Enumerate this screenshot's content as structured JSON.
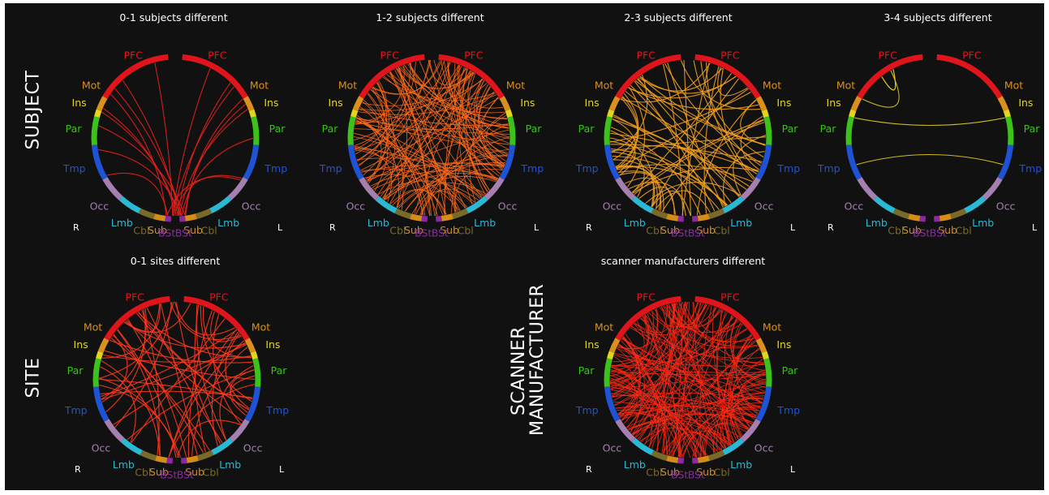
{
  "row_labels": {
    "subject": "SUBJECT",
    "site": "SITE",
    "scanner_line1": "SCANNER",
    "scanner_line2": "MANUFACTURER"
  },
  "regions": [
    {
      "name": "PFC",
      "color": "#e0151b"
    },
    {
      "name": "Mot",
      "color": "#d9901c"
    },
    {
      "name": "Ins",
      "color": "#e2d51e"
    },
    {
      "name": "Par",
      "color": "#3cc21a"
    },
    {
      "name": "Tmp",
      "color": "#1f53d6"
    },
    {
      "name": "Occ",
      "color": "#a57fb0"
    },
    {
      "name": "Lmb",
      "color": "#29b9d4"
    },
    {
      "name": "Cbl",
      "color": "#7a6a2a"
    },
    {
      "name": "Sub",
      "color": "#d58d15"
    },
    {
      "name": "BSt",
      "color": "#8a2aa0"
    }
  ],
  "hemisphere_labels": {
    "right": "R",
    "left": "L"
  },
  "panels": [
    {
      "id": "p1",
      "title": "0-1 subjects different",
      "edge_color": "#e8201c",
      "edge_count": 18,
      "pattern": "lower-fan"
    },
    {
      "id": "p2",
      "title": "1-2 subjects different",
      "edge_color": "#ff6a1a",
      "edge_count": 130,
      "pattern": "dense"
    },
    {
      "id": "p3",
      "title": "2-3 subjects different",
      "edge_color": "#f2a020",
      "edge_count": 70,
      "pattern": "medium"
    },
    {
      "id": "p4",
      "title": "3-4 subjects different",
      "edge_color": "#e0cc1e",
      "edge_count": 3,
      "pattern": "sparse"
    },
    {
      "id": "p5",
      "title": "0-1 sites different",
      "edge_color": "#ff3a1e",
      "edge_count": 55,
      "pattern": "medium"
    },
    {
      "id": "p6",
      "title": "scanner manufacturers different",
      "edge_color": "#ff2a14",
      "edge_count": 170,
      "pattern": "dense"
    }
  ]
}
